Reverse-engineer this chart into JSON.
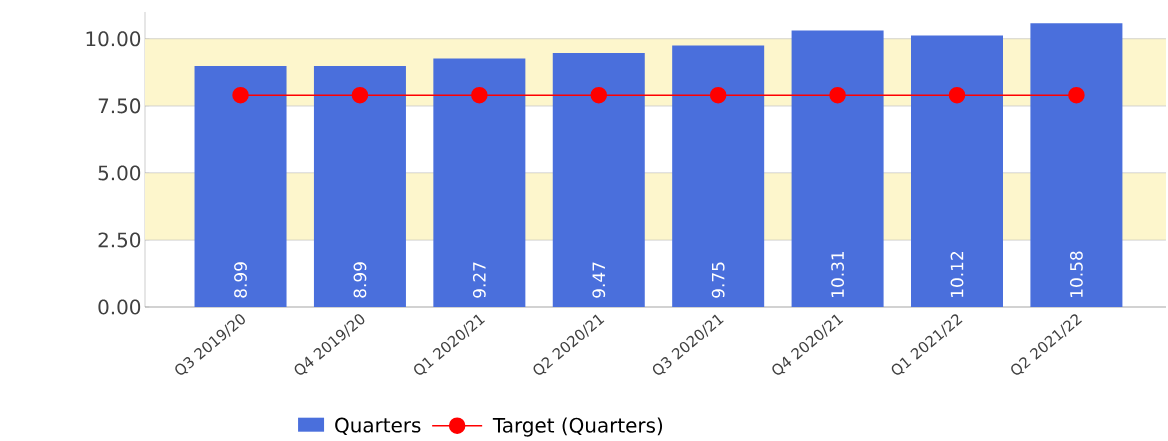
{
  "chart_data": {
    "type": "bar",
    "categories": [
      "Q3 2019/20",
      "Q4 2019/20",
      "Q1 2020/21",
      "Q2 2020/21",
      "Q3 2020/21",
      "Q4 2020/21",
      "Q1 2021/22",
      "Q2 2021/22"
    ],
    "series": [
      {
        "name": "Quarters",
        "color": "#4a6fdc",
        "values": [
          8.99,
          8.99,
          9.27,
          9.47,
          9.75,
          10.31,
          10.12,
          10.58
        ],
        "value_labels": [
          "8.99",
          "8.99",
          "9.27",
          "9.47",
          "9.75",
          "10.31",
          "10.12",
          "10.58"
        ]
      },
      {
        "name": "Target (Quarters)",
        "type": "line",
        "color": "#ff0000",
        "marker": "circle",
        "values": [
          7.9,
          7.9,
          7.9,
          7.9,
          7.9,
          7.9,
          7.9,
          7.9
        ]
      }
    ],
    "ylim": [
      0,
      11
    ],
    "yticks": [
      {
        "value": 0,
        "label": "0.00"
      },
      {
        "value": 2.5,
        "label": "2.50"
      },
      {
        "value": 5,
        "label": "5.00"
      },
      {
        "value": 7.5,
        "label": "7.50"
      },
      {
        "value": 10,
        "label": "10.00"
      }
    ],
    "bands": [
      {
        "axis": "y",
        "from": 2.5,
        "to": 5,
        "color": "#fdf6cc"
      },
      {
        "axis": "y",
        "from": 7.5,
        "to": 10,
        "color": "#fdf6cc"
      }
    ],
    "grid": "y",
    "legend": "bottom"
  }
}
